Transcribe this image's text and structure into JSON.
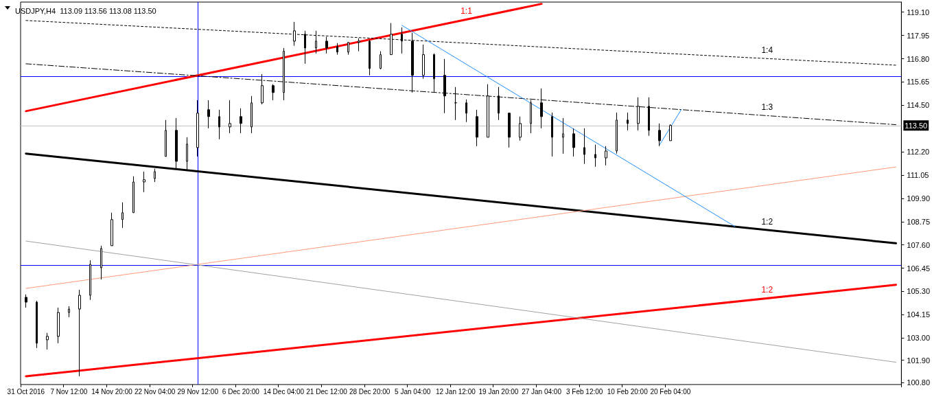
{
  "chart_data": {
    "type": "candlestick",
    "title": "USDJPY,H4  113.09 113.56 113.08 113.50",
    "categories": [
      "31 Oct 2016",
      null,
      null,
      null,
      "7 Nov 12:00",
      null,
      null,
      null,
      "14 Nov 20:00",
      null,
      null,
      null,
      "22 Nov 04:00",
      null,
      null,
      null,
      "29 Nov 12:00",
      null,
      null,
      null,
      "6 Dec 20:00",
      null,
      null,
      null,
      "14 Dec 04:00",
      null,
      null,
      null,
      "21 Dec 12:00",
      null,
      null,
      null,
      "28 Dec 20:00",
      null,
      null,
      null,
      "5 Jan 04:00",
      null,
      null,
      null,
      "12 Jan 12:00",
      null,
      null,
      null,
      "19 Jan 20:00",
      null,
      null,
      null,
      "27 Jan 04:00",
      null,
      null,
      null,
      "3 Feb 12:00",
      null,
      null,
      null,
      "10 Feb 20:00",
      null,
      null,
      null,
      "20 Feb 04:00",
      null,
      null,
      null,
      null,
      null,
      null,
      null,
      null,
      null,
      null,
      null,
      null,
      null,
      null,
      null,
      null,
      null,
      null,
      null,
      null,
      null
    ],
    "ohlc": [
      [
        105.01,
        105.15,
        104.5,
        104.77
      ],
      [
        104.77,
        104.84,
        102.5,
        102.74
      ],
      [
        102.91,
        103.25,
        102.43,
        103.08
      ],
      [
        103.08,
        104.5,
        102.74,
        104.26
      ],
      [
        104.26,
        104.57,
        104.03,
        104.43
      ],
      [
        104.43,
        105.38,
        101.11,
        105.11
      ],
      [
        105.11,
        106.84,
        104.88,
        106.64
      ],
      [
        106.47,
        107.56,
        105.89,
        107.42
      ],
      [
        107.56,
        109.19,
        107.56,
        108.85
      ],
      [
        108.85,
        109.7,
        108.44,
        109.19
      ],
      [
        109.19,
        110.99,
        109.19,
        110.71
      ],
      [
        110.71,
        111.22,
        110.21,
        110.82
      ],
      [
        110.88,
        111.36,
        110.71,
        111.22
      ],
      [
        111.97,
        113.77,
        111.97,
        113.26
      ],
      [
        113.26,
        113.87,
        111.36,
        111.73
      ],
      [
        111.73,
        112.92,
        111.29,
        112.58
      ],
      [
        112.41,
        114.75,
        111.97,
        114.11
      ],
      [
        114.28,
        114.75,
        113.36,
        113.94
      ],
      [
        113.94,
        114.28,
        112.82,
        113.43
      ],
      [
        113.43,
        114.75,
        113.12,
        113.6
      ],
      [
        113.94,
        114.35,
        113.12,
        113.6
      ],
      [
        113.43,
        114.96,
        113.12,
        114.62
      ],
      [
        114.62,
        116.04,
        114.55,
        115.47
      ],
      [
        115.47,
        115.54,
        114.75,
        115.13
      ],
      [
        115.13,
        117.33,
        114.75,
        117.17
      ],
      [
        117.67,
        118.62,
        117.44,
        118.18
      ],
      [
        118.01,
        118.18,
        116.55,
        117.33
      ],
      [
        117.33,
        118.18,
        117.06,
        117.67
      ],
      [
        117.67,
        117.88,
        117.06,
        117.33
      ],
      [
        117.4,
        117.57,
        117.0,
        117.13
      ],
      [
        117.13,
        117.61,
        117.0,
        117.61
      ],
      [
        117.61,
        117.81,
        117.17,
        117.67
      ],
      [
        117.67,
        117.74,
        115.98,
        116.32
      ],
      [
        116.32,
        117.17,
        116.28,
        117.0
      ],
      [
        117.0,
        118.56,
        117.0,
        118.01
      ],
      [
        118.01,
        118.35,
        117.06,
        117.67
      ],
      [
        117.67,
        118.08,
        115.13,
        115.98
      ],
      [
        115.98,
        117.5,
        115.81,
        117.0
      ],
      [
        117.0,
        117.06,
        115.16,
        115.81
      ],
      [
        115.98,
        116.79,
        114.11,
        114.96
      ],
      [
        114.62,
        115.4,
        113.77,
        114.62
      ],
      [
        114.62,
        114.79,
        113.67,
        114.11
      ],
      [
        113.94,
        114.28,
        112.48,
        112.92
      ],
      [
        112.92,
        115.54,
        112.92,
        114.96
      ],
      [
        114.96,
        115.4,
        113.77,
        114.11
      ],
      [
        114.11,
        114.14,
        112.41,
        112.92
      ],
      [
        112.92,
        113.94,
        112.75,
        113.6
      ],
      [
        113.6,
        114.75,
        113.12,
        114.62
      ],
      [
        114.62,
        115.33,
        113.36,
        113.94
      ],
      [
        113.94,
        114.14,
        111.97,
        112.92
      ],
      [
        112.92,
        113.87,
        112.11,
        113.09
      ],
      [
        113.09,
        113.36,
        111.97,
        112.41
      ],
      [
        112.41,
        113.36,
        111.6,
        112.07
      ],
      [
        112.07,
        112.55,
        111.46,
        111.9
      ],
      [
        111.9,
        112.48,
        111.53,
        112.24
      ],
      [
        112.24,
        114.14,
        112.11,
        113.77
      ],
      [
        113.77,
        114.14,
        113.26,
        113.6
      ],
      [
        113.6,
        114.89,
        113.26,
        114.45
      ],
      [
        114.45,
        114.89,
        112.99,
        113.26
      ],
      [
        113.26,
        113.6,
        112.48,
        112.75
      ],
      [
        112.75,
        113.56,
        112.75,
        113.5
      ],
      null,
      null,
      null,
      null,
      null,
      null,
      null,
      null,
      null,
      null,
      null,
      null,
      null,
      null,
      null,
      null,
      null,
      null,
      null,
      null,
      null
    ],
    "series": [
      {
        "type": "line",
        "name": "1:1",
        "color": "#ff0000",
        "line_style": "solid",
        "values": [
          114.21,
          null,
          null,
          null,
          null,
          null,
          null,
          null,
          null,
          null,
          null,
          null,
          null,
          null,
          null,
          null,
          null,
          null,
          null,
          null,
          null,
          null,
          null,
          null,
          null,
          null,
          null,
          null,
          null,
          null,
          null,
          null,
          null,
          null,
          null,
          null,
          null,
          null,
          null,
          null,
          null,
          null,
          null,
          null,
          null,
          null,
          null,
          null,
          119.51,
          null,
          null,
          null,
          null,
          null,
          null,
          null,
          null,
          null,
          null,
          null,
          null,
          null,
          null,
          null,
          null,
          null,
          null,
          null,
          null,
          null,
          null,
          null,
          null,
          null,
          null,
          null,
          null,
          null,
          null,
          null,
          null,
          null
        ]
      },
      {
        "type": "line",
        "name": "1:4",
        "color": "#000000",
        "line_style": "dotted",
        "values": [
          118.69,
          null,
          null,
          null,
          null,
          null,
          null,
          null,
          null,
          null,
          null,
          null,
          null,
          null,
          null,
          null,
          null,
          null,
          null,
          null,
          null,
          null,
          null,
          null,
          null,
          null,
          null,
          null,
          null,
          null,
          null,
          null,
          null,
          null,
          null,
          null,
          null,
          null,
          null,
          null,
          null,
          null,
          null,
          null,
          null,
          null,
          null,
          null,
          null,
          null,
          null,
          null,
          null,
          null,
          null,
          null,
          null,
          null,
          null,
          null,
          null,
          null,
          null,
          null,
          null,
          null,
          null,
          null,
          null,
          null,
          null,
          null,
          null,
          null,
          null,
          null,
          null,
          null,
          null,
          null,
          null,
          116.48
        ]
      },
      {
        "type": "line",
        "name": "1:3",
        "color": "#000000",
        "line_style": "dashed",
        "values": [
          116.55,
          null,
          null,
          null,
          null,
          null,
          null,
          null,
          null,
          null,
          null,
          null,
          null,
          null,
          null,
          null,
          null,
          null,
          null,
          null,
          null,
          null,
          null,
          null,
          null,
          null,
          null,
          null,
          null,
          null,
          null,
          null,
          null,
          null,
          null,
          null,
          null,
          null,
          null,
          null,
          null,
          null,
          null,
          null,
          null,
          null,
          null,
          null,
          null,
          null,
          null,
          null,
          null,
          null,
          null,
          null,
          null,
          null,
          null,
          null,
          null,
          null,
          null,
          null,
          null,
          null,
          null,
          null,
          null,
          null,
          null,
          null,
          null,
          null,
          null,
          null,
          null,
          null,
          null,
          null,
          null,
          113.54
        ]
      },
      {
        "type": "line",
        "name": "1:2",
        "color": "#000000",
        "line_style": "solid",
        "values": [
          112.11,
          null,
          null,
          null,
          null,
          null,
          null,
          null,
          null,
          null,
          null,
          null,
          null,
          null,
          null,
          null,
          null,
          null,
          null,
          null,
          null,
          null,
          null,
          null,
          null,
          null,
          null,
          null,
          null,
          null,
          null,
          null,
          null,
          null,
          null,
          null,
          null,
          null,
          null,
          null,
          null,
          null,
          null,
          null,
          null,
          null,
          null,
          null,
          null,
          null,
          null,
          null,
          null,
          null,
          null,
          null,
          null,
          null,
          null,
          null,
          null,
          null,
          null,
          null,
          null,
          null,
          null,
          null,
          null,
          null,
          null,
          null,
          null,
          null,
          null,
          null,
          null,
          null,
          null,
          null,
          null,
          107.68
        ]
      },
      {
        "type": "line",
        "name": "1:2",
        "color": "#ff0000",
        "line_style": "solid",
        "values": [
          101.11,
          null,
          null,
          null,
          null,
          null,
          null,
          null,
          null,
          null,
          null,
          null,
          null,
          null,
          null,
          null,
          null,
          null,
          null,
          null,
          null,
          null,
          null,
          null,
          null,
          null,
          null,
          null,
          null,
          null,
          null,
          null,
          null,
          null,
          null,
          null,
          null,
          null,
          null,
          null,
          null,
          null,
          null,
          null,
          null,
          null,
          null,
          null,
          null,
          null,
          null,
          null,
          null,
          null,
          null,
          null,
          null,
          null,
          null,
          null,
          null,
          null,
          null,
          null,
          null,
          null,
          null,
          null,
          null,
          null,
          null,
          null,
          null,
          null,
          null,
          null,
          null,
          null,
          null,
          null,
          null,
          105.63
        ]
      },
      {
        "type": "line",
        "color": "#ff9977",
        "line_style": "solid",
        "values": [
          105.45,
          null,
          null,
          null,
          null,
          null,
          null,
          null,
          null,
          null,
          null,
          null,
          null,
          null,
          null,
          null,
          null,
          null,
          null,
          null,
          null,
          null,
          null,
          null,
          null,
          null,
          null,
          null,
          null,
          null,
          null,
          null,
          null,
          null,
          null,
          null,
          null,
          null,
          null,
          null,
          null,
          null,
          null,
          null,
          null,
          null,
          null,
          null,
          null,
          null,
          null,
          null,
          null,
          null,
          null,
          null,
          null,
          null,
          null,
          null,
          null,
          null,
          null,
          null,
          null,
          null,
          null,
          null,
          null,
          null,
          null,
          null,
          null,
          null,
          null,
          null,
          null,
          null,
          null,
          null,
          null,
          111.45
        ]
      },
      {
        "type": "line",
        "color": "#a0a0a0",
        "line_style": "solid",
        "values": [
          107.79,
          null,
          null,
          null,
          null,
          null,
          null,
          null,
          null,
          null,
          null,
          null,
          null,
          null,
          null,
          null,
          null,
          null,
          null,
          null,
          null,
          null,
          null,
          null,
          null,
          null,
          null,
          null,
          null,
          null,
          null,
          null,
          null,
          null,
          null,
          null,
          null,
          null,
          null,
          null,
          null,
          null,
          null,
          null,
          null,
          null,
          null,
          null,
          null,
          null,
          null,
          null,
          null,
          null,
          null,
          null,
          null,
          null,
          null,
          null,
          null,
          null,
          null,
          null,
          null,
          null,
          null,
          null,
          null,
          null,
          null,
          null,
          null,
          null,
          null,
          null,
          null,
          null,
          null,
          null,
          null,
          101.8
        ]
      },
      {
        "type": "line",
        "color": "#1e90ff",
        "line_style": "solid",
        "values": [
          null,
          null,
          null,
          null,
          null,
          null,
          null,
          null,
          null,
          null,
          null,
          null,
          null,
          null,
          null,
          null,
          null,
          null,
          null,
          null,
          null,
          null,
          null,
          null,
          null,
          null,
          null,
          null,
          null,
          null,
          null,
          null,
          null,
          null,
          null,
          118.45,
          null,
          null,
          null,
          null,
          null,
          null,
          null,
          null,
          null,
          null,
          null,
          null,
          null,
          null,
          null,
          null,
          null,
          null,
          null,
          null,
          null,
          null,
          null,
          null,
          null,
          null,
          null,
          null,
          null,
          null,
          108.51,
          null,
          null,
          null,
          null,
          null,
          null,
          null,
          null,
          null,
          null,
          null,
          null,
          null,
          null,
          null
        ]
      },
      {
        "type": "line",
        "color": "#1e90ff",
        "line_style": "solid",
        "values": [
          null,
          null,
          null,
          null,
          null,
          null,
          null,
          null,
          null,
          null,
          null,
          null,
          null,
          null,
          null,
          null,
          null,
          null,
          null,
          null,
          null,
          null,
          null,
          null,
          null,
          null,
          null,
          null,
          null,
          null,
          null,
          null,
          null,
          null,
          null,
          null,
          null,
          null,
          null,
          null,
          null,
          null,
          null,
          null,
          null,
          null,
          null,
          null,
          null,
          null,
          null,
          null,
          null,
          null,
          null,
          null,
          null,
          null,
          null,
          112.55,
          null,
          114.28,
          null,
          null,
          null,
          null,
          null,
          null,
          null,
          null,
          null,
          null,
          null,
          null,
          null,
          null,
          null,
          null,
          null,
          null,
          null,
          null
        ]
      }
    ],
    "ylim": [
      100.7,
      119.6
    ],
    "yticks": [
      {
        "value": 119.1,
        "label": "119.10"
      },
      {
        "value": 117.95,
        "label": "117.95"
      },
      {
        "value": 116.8,
        "label": "116.80"
      },
      {
        "value": 115.65,
        "label": "115.65"
      },
      {
        "value": 114.5,
        "label": "114.50"
      },
      {
        "value": 112.2,
        "label": "112.20"
      },
      {
        "value": 111.05,
        "label": "111.05"
      },
      {
        "value": 109.9,
        "label": "109.90"
      },
      {
        "value": 108.75,
        "label": "108.75"
      },
      {
        "value": 107.6,
        "label": "107.60"
      },
      {
        "value": 106.45,
        "label": "106.45"
      },
      {
        "value": 105.3,
        "label": "105.30"
      },
      {
        "value": 104.15,
        "label": "104.15"
      },
      {
        "value": 103.0,
        "label": "103.00"
      },
      {
        "value": 101.9,
        "label": "101.90"
      },
      {
        "value": 100.8,
        "label": "100.80"
      }
    ],
    "ref_lines": [
      {
        "axis": "y",
        "value": 115.94,
        "label": null,
        "color": "#0000ff"
      },
      {
        "axis": "y",
        "value": 106.61,
        "label": null,
        "color": "#0000ff"
      },
      {
        "axis": "y",
        "value": 113.5,
        "label": "113.50",
        "color": "#c0c0c0"
      },
      {
        "axis": "x",
        "value": "29 Nov 12:00",
        "label": null,
        "color": "#0000ff"
      }
    ],
    "grid": false,
    "legend": false,
    "marker": "none"
  }
}
